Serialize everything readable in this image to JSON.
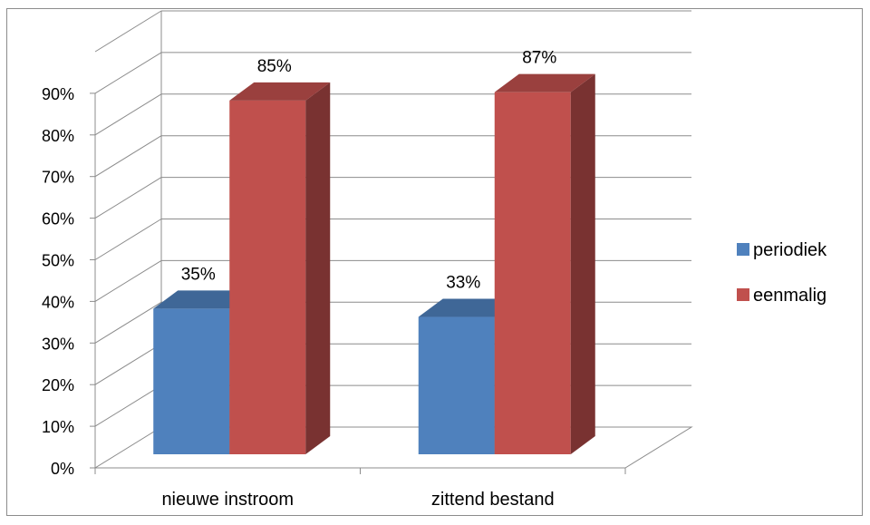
{
  "chart_data": {
    "type": "bar",
    "style": "3d-clustered-column",
    "categories": [
      "nieuwe instroom",
      "zittend bestand"
    ],
    "series": [
      {
        "name": "periodiek",
        "values": [
          35,
          33
        ],
        "labels": [
          "35%",
          "33%"
        ],
        "color": "#4f81bd"
      },
      {
        "name": "eenmalig",
        "values": [
          85,
          87
        ],
        "labels": [
          "85%",
          "87%"
        ],
        "color": "#c0504d"
      }
    ],
    "y_ticks": [
      "0%",
      "10%",
      "20%",
      "30%",
      "40%",
      "50%",
      "60%",
      "70%",
      "80%",
      "90%"
    ],
    "ylim": [
      0,
      100
    ],
    "grid": true,
    "legend": "right",
    "title": "",
    "xlabel": "",
    "ylabel": ""
  }
}
